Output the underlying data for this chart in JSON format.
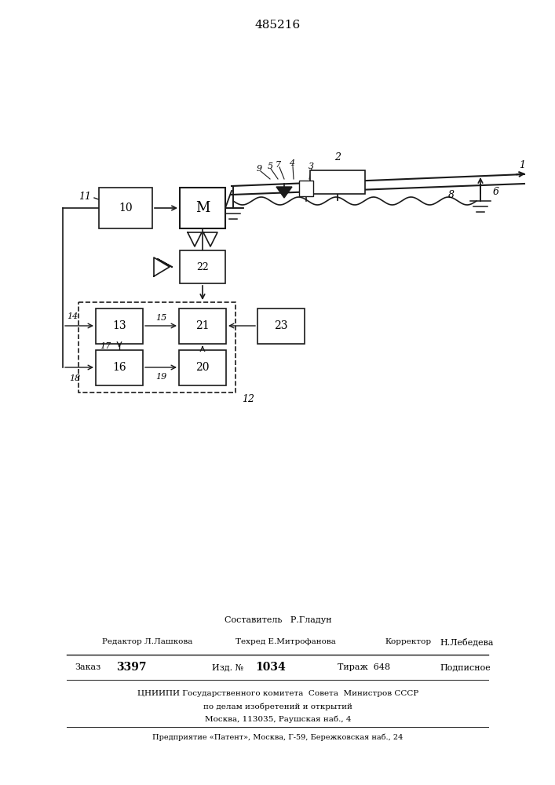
{
  "patent_number": "485216",
  "bg_color": "#ffffff",
  "line_color": "#1a1a1a",
  "footer": {
    "line1": "Составитель   Р.Гладун",
    "line2_parts": [
      "Редактор Л.Лашкова",
      "Техред Е.Митрофанова",
      "Корректор",
      "Н.Лебедева"
    ],
    "order": "Заказ",
    "order_num": "3397",
    "izd": "Изд. №",
    "izd_num": "1034",
    "tirazh": "Тираж",
    "tirazh_num": "648",
    "podpisnoe": "Подписное",
    "cniip1": "ЦНИИПИ Государственного комитета  Совета  Министров СССР",
    "cniip2": "по делам изобретений и открытий",
    "cniip3": "Москва, 113035, Раушская наб., 4",
    "predpr": "Предприятие «Патент», Москва, Г-59, Бережковская наб., 24"
  }
}
